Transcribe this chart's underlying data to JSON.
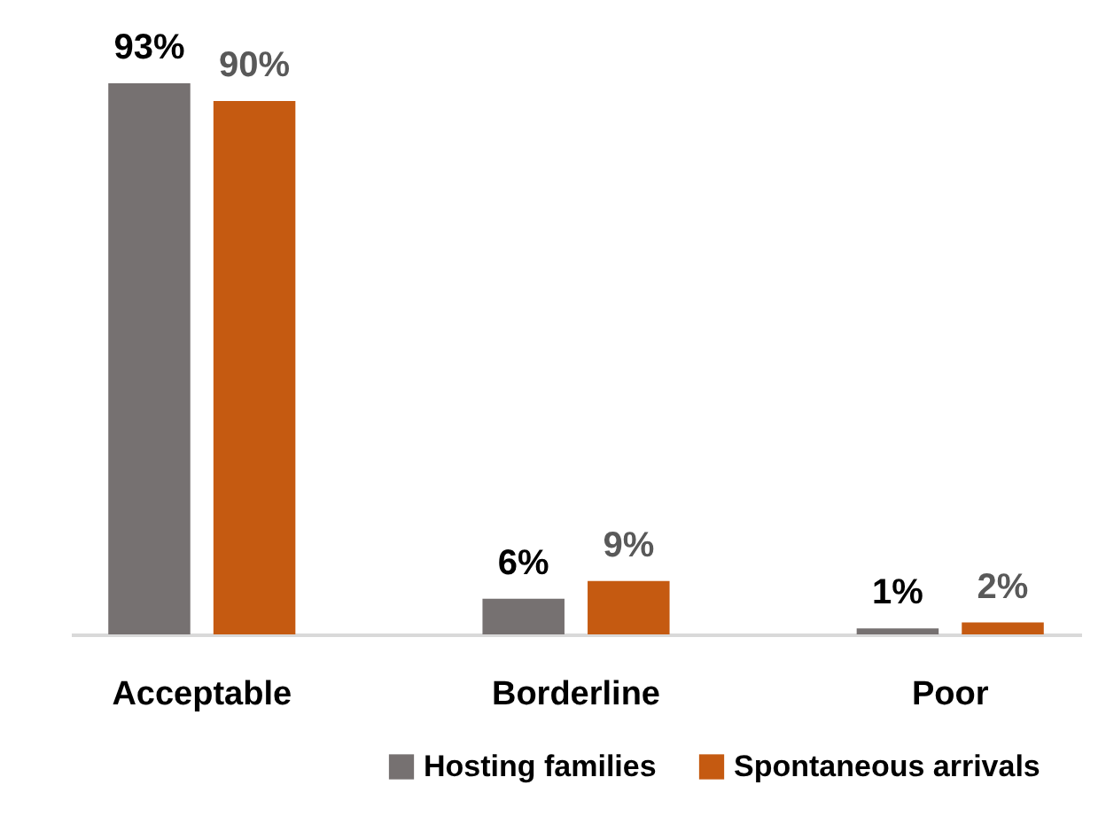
{
  "chart_data": {
    "type": "bar",
    "categories": [
      "Acceptable",
      "Borderline",
      "Poor"
    ],
    "series": [
      {
        "name": "Hosting families",
        "color": "#767171",
        "values": [
          93,
          6,
          1
        ],
        "value_labels": [
          "93%",
          "6%",
          "1%"
        ]
      },
      {
        "name": "Spontaneous arrivals",
        "color": "#c55a11",
        "values": [
          90,
          9,
          2
        ],
        "value_labels": [
          "90%",
          "9%",
          "2%"
        ]
      }
    ],
    "legend": "bottom"
  }
}
